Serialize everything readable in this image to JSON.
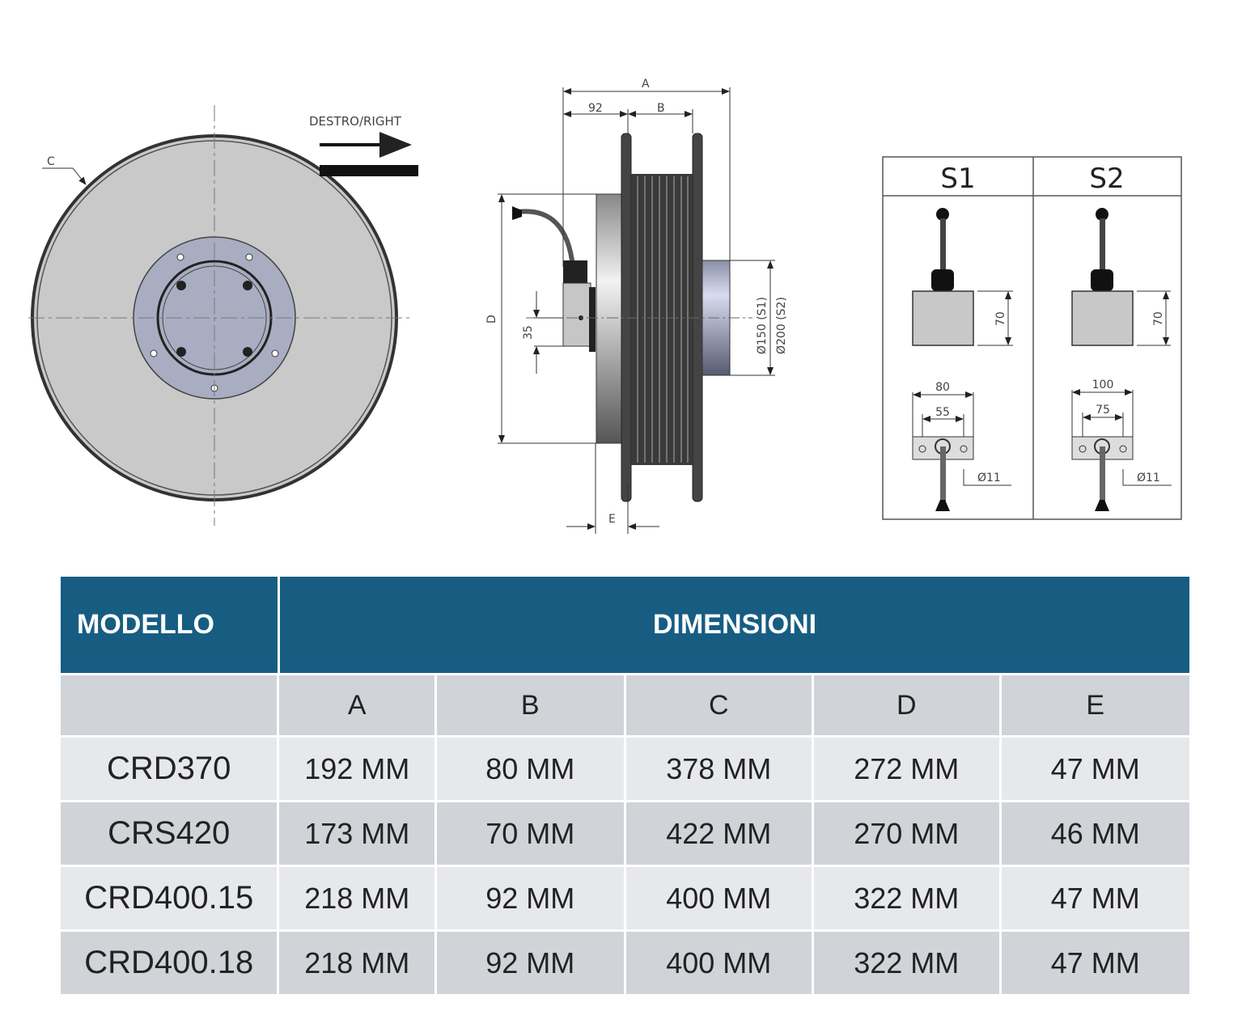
{
  "drawing": {
    "front_view": {
      "direction_label": "DESTRO/RIGHT",
      "c_label": "C"
    },
    "side_view": {
      "a_label": "A",
      "dim_92": "92",
      "b_label": "B",
      "d_label": "D",
      "dim_35": "35",
      "e_label": "E",
      "dia_s1": "Ø150 (S1)",
      "dia_s2": "Ø200 (S2)"
    },
    "options": [
      {
        "title": "S1",
        "height": "70",
        "width": "80",
        "hole_spacing": "55",
        "hole_dia": "Ø11"
      },
      {
        "title": "S2",
        "height": "70",
        "width": "100",
        "hole_spacing": "75",
        "hole_dia": "Ø11"
      }
    ]
  },
  "table": {
    "header": {
      "model": "MODELLO",
      "dimensions": "DIMENSIONI"
    },
    "columns": [
      "A",
      "B",
      "C",
      "D",
      "E"
    ],
    "rows": [
      {
        "model": "CRD370",
        "values": [
          "192 MM",
          "80 MM",
          "378 MM",
          "272 MM",
          "47 MM"
        ]
      },
      {
        "model": "CRS420",
        "values": [
          "173 MM",
          "70 MM",
          "422 MM",
          "270 MM",
          "46 MM"
        ]
      },
      {
        "model": "CRD400.15",
        "values": [
          "218 MM",
          "92 MM",
          "400 MM",
          "322 MM",
          "47 MM"
        ]
      },
      {
        "model": "CRD400.18",
        "values": [
          "218 MM",
          "92 MM",
          "400 MM",
          "322 MM",
          "47 MM"
        ]
      }
    ]
  },
  "colors": {
    "header_bg": "#175d82",
    "row_light": "#e6e8eb",
    "row_dark": "#d0d3d7"
  }
}
